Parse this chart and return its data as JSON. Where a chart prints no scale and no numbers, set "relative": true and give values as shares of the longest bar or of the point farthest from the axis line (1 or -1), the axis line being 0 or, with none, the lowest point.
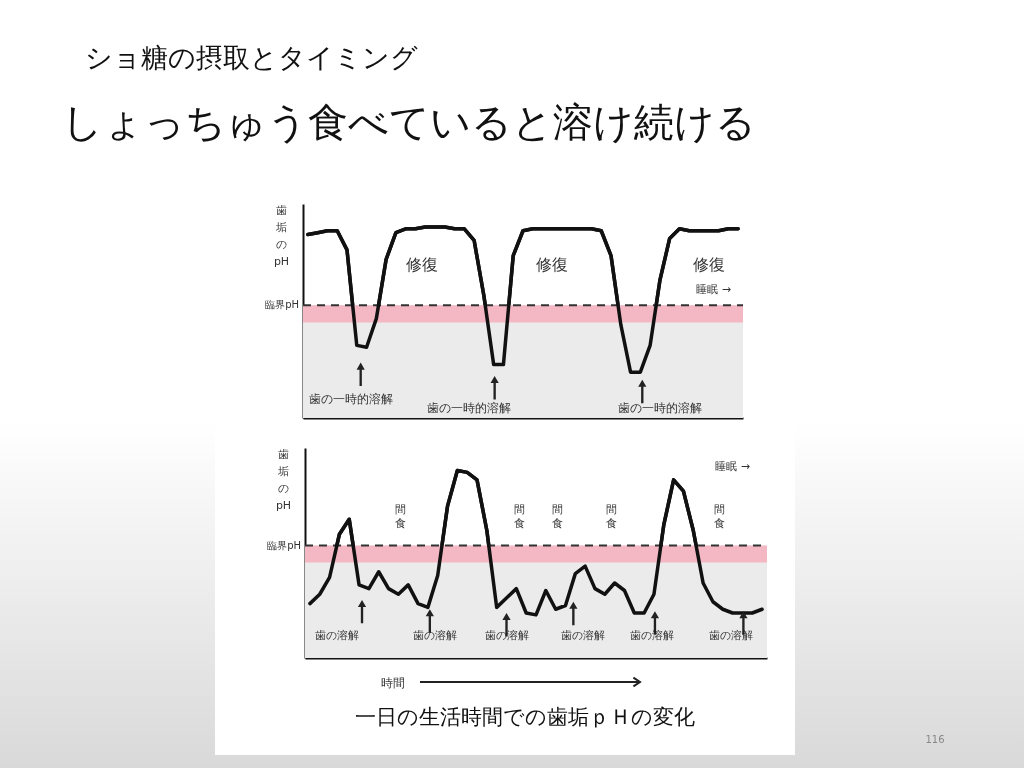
{
  "chart_data": [
    {
      "type": "line",
      "title": "ショ糖の摂取とタイミング",
      "subtitle": "しょっちゅう食べていると溶け続ける",
      "ylabel": "歯垢のpH",
      "relative": true,
      "categories": [
        null,
        null,
        null,
        null,
        null,
        null,
        null,
        null,
        null,
        null,
        null,
        null,
        null,
        null,
        null,
        null,
        null,
        null,
        null,
        null,
        null,
        null,
        null,
        null,
        null,
        null,
        null,
        null,
        null,
        null,
        null,
        null,
        null,
        null,
        null,
        null,
        null,
        null,
        null,
        null,
        null,
        null,
        null,
        null,
        null
      ],
      "series": [
        {
          "color": "#111111",
          "values": [
            0.96,
            0.97,
            0.98,
            0.98,
            0.88,
            0.38,
            0.37,
            0.52,
            0.83,
            0.97,
            0.99,
            0.99,
            1,
            1,
            1,
            0.99,
            0.99,
            0.93,
            0.64,
            0.28,
            0.28,
            0.85,
            0.98,
            0.99,
            0.99,
            0.99,
            0.99,
            0.99,
            0.99,
            0.99,
            0.98,
            0.85,
            0.49,
            0.24,
            0.24,
            0.38,
            0.72,
            0.94,
            0.99,
            0.98,
            0.98,
            0.98,
            0.98,
            0.99,
            0.99
          ]
        }
      ],
      "bands": [
        {
          "axis": "y",
          "from": 0,
          "to": 0.59,
          "color": "#ebebeb"
        },
        {
          "axis": "y",
          "from": 0.5,
          "to": 0.59,
          "color": "#f4b8c4"
        }
      ],
      "ref_lines": [
        {
          "axis": "y",
          "value": 0.59,
          "label": "臨界pH",
          "line_style": "dashed"
        }
      ],
      "annotations": [
        "修復",
        "修復",
        "修復",
        "睡眠 →",
        "歯の一時的溶解",
        "歯の一時的溶解",
        "歯の一時的溶解"
      ]
    },
    {
      "type": "line",
      "ylabel": "歯垢のpH",
      "xlabel": "時間",
      "relative": true,
      "categories": [
        null,
        null,
        null,
        null,
        null,
        null,
        null,
        null,
        null,
        null,
        null,
        null,
        null,
        null,
        null,
        null,
        null,
        null,
        null,
        null,
        null,
        null,
        null,
        null,
        null,
        null,
        null,
        null,
        null,
        null,
        null,
        null,
        null,
        null,
        null,
        null,
        null,
        null,
        null,
        null,
        null,
        null,
        null,
        null,
        null,
        null,
        null
      ],
      "series": [
        {
          "color": "#111111",
          "values": [
            0.29,
            0.34,
            0.43,
            0.66,
            0.74,
            0.39,
            0.37,
            0.46,
            0.37,
            0.34,
            0.39,
            0.29,
            0.27,
            0.44,
            0.81,
            1,
            0.99,
            0.95,
            0.68,
            0.27,
            0.32,
            0.37,
            0.24,
            0.23,
            0.36,
            0.26,
            0.28,
            0.45,
            0.49,
            0.37,
            0.34,
            0.4,
            0.36,
            0.24,
            0.24,
            0.34,
            0.71,
            0.95,
            0.89,
            0.68,
            0.4,
            0.3,
            0.26,
            0.24,
            0.24,
            0.24,
            0.26
          ]
        }
      ],
      "bands": [
        {
          "axis": "y",
          "from": 0,
          "to": 0.6,
          "color": "#ebebeb"
        },
        {
          "axis": "y",
          "from": 0.51,
          "to": 0.6,
          "color": "#f4b8c4"
        }
      ],
      "ref_lines": [
        {
          "axis": "y",
          "value": 0.6,
          "label": "臨界pH",
          "line_style": "dashed"
        }
      ],
      "annotations": [
        "睡眠 →",
        "間食",
        "間食",
        "間食",
        "間食",
        "間食",
        "歯の溶解",
        "歯の溶解",
        "歯の溶解",
        "歯の溶解",
        "歯の溶解",
        "歯の溶解",
        "一日の生活時間での歯垢ｐＨの変化",
        "116"
      ]
    }
  ]
}
